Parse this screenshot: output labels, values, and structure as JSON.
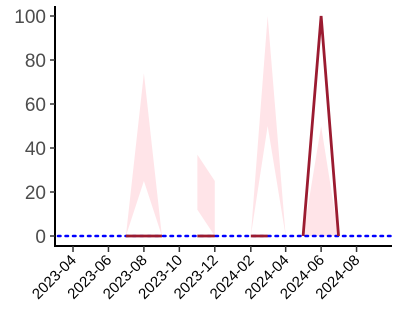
{
  "chart_data": {
    "type": "line",
    "title": "",
    "xlabel": "",
    "ylabel": "",
    "ylim": [
      0,
      100
    ],
    "xlim": [
      "2023-03-01",
      "2024-10-01"
    ],
    "grid": false,
    "legend": "none",
    "y_ticks": [
      0,
      20,
      40,
      60,
      80,
      100
    ],
    "x_ticks": [
      "2023-04",
      "2023-06",
      "2023-08",
      "2023-10",
      "2023-12",
      "2024-02",
      "2024-04",
      "2024-06",
      "2024-08"
    ],
    "colors": {
      "line": "#9b1b30",
      "band": "#ffe4e8",
      "reference": "#0000ff",
      "axis": "#000000"
    },
    "series": [
      {
        "values": [
          {
            "x": "2023-07-01",
            "y": 0
          },
          {
            "x": "2023-08-01",
            "y": 0
          },
          {
            "x": "2023-09-01",
            "y": 0
          },
          {
            "x": "2023-11-01",
            "y": 0
          },
          {
            "x": "2023-12-01",
            "y": 0
          },
          {
            "x": "2024-02-01",
            "y": 0
          },
          {
            "x": "2024-03-01",
            "y": 0
          },
          {
            "x": "2024-05-01",
            "y": 0
          },
          {
            "x": "2024-06-01",
            "y": 100
          },
          {
            "x": "2024-07-01",
            "y": 0
          }
        ],
        "segments": [
          [
            0,
            2
          ],
          [
            3,
            4
          ],
          [
            5,
            6
          ],
          [
            7,
            9
          ]
        ]
      }
    ],
    "bands": [
      {
        "x": [
          "2023-07-01",
          "2023-08-01",
          "2023-09-01"
        ],
        "lower": [
          0,
          25,
          0
        ],
        "upper": [
          0,
          74,
          0
        ]
      },
      {
        "x": [
          "2023-11-01",
          "2023-12-01"
        ],
        "lower": [
          12,
          0
        ],
        "upper": [
          37,
          25
        ]
      },
      {
        "x": [
          "2024-02-01",
          "2024-03-01",
          "2024-04-01"
        ],
        "lower": [
          0,
          50,
          0
        ],
        "upper": [
          0,
          100,
          0
        ]
      },
      {
        "x": [
          "2024-05-01",
          "2024-06-01",
          "2024-07-01"
        ],
        "lower": [
          0,
          0,
          0
        ],
        "upper": [
          0,
          50,
          0
        ]
      }
    ],
    "reference_line": {
      "y": 0,
      "style": "dotted"
    }
  }
}
